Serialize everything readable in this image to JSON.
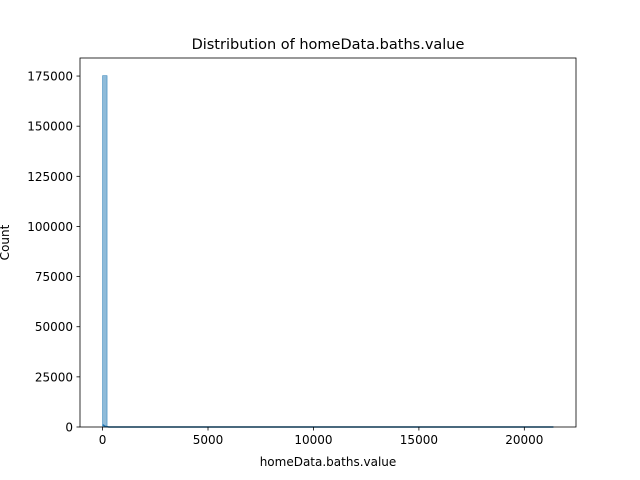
{
  "chart_data": {
    "type": "histogram",
    "title": "Distribution of homeData.baths.value",
    "xlabel": "homeData.baths.value",
    "ylabel": "Count",
    "xlim": [
      -1070,
      22450
    ],
    "ylim": [
      0,
      184000
    ],
    "xticks": [
      0,
      5000,
      10000,
      15000,
      20000
    ],
    "yticks": [
      0,
      25000,
      50000,
      75000,
      100000,
      125000,
      150000,
      175000
    ],
    "bar_color": "#1f77b4",
    "kde_color": "#1f77b4",
    "bins": [
      {
        "x_start": 0,
        "x_end": 213,
        "count": 175200
      },
      {
        "x_start": 213,
        "x_end": 21380,
        "count": 0
      }
    ],
    "kde": {
      "x": [
        0,
        40,
        120,
        300,
        1000,
        3000,
        6000,
        10000,
        15000,
        21380
      ],
      "y": [
        1200,
        900,
        300,
        30,
        5,
        1,
        0,
        0,
        0,
        0
      ]
    },
    "grid": false,
    "legend": false
  }
}
